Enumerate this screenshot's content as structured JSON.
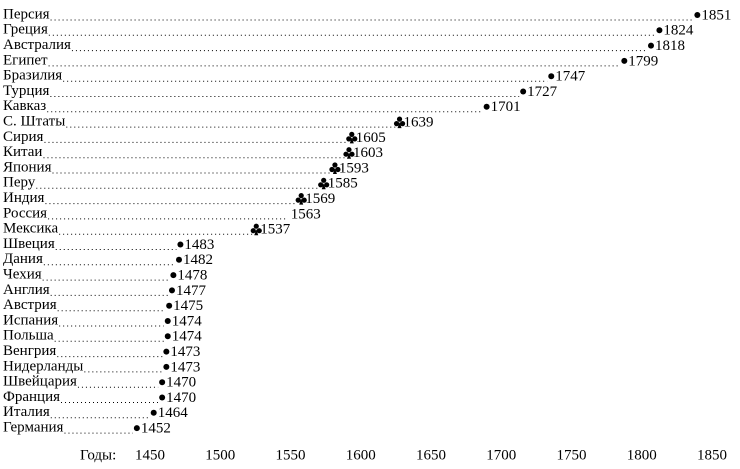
{
  "chart_data": {
    "type": "dot",
    "categories": [
      "Персия",
      "Греция",
      "Австралия",
      "Египет",
      "Бразилия",
      "Турция",
      "Кавказ",
      "С. Штаты",
      "Сирия",
      "Китаи",
      "Япония",
      "Перу",
      "Индия",
      "Россия",
      "Мексика",
      "Швеция",
      "Дания",
      "Чехия",
      "Англия",
      "Австрия",
      "Испания",
      "Польша",
      "Венгрия",
      "Нидерланды",
      "Швейцария",
      "Франция",
      "Италия",
      "Германия"
    ],
    "values": [
      1851,
      1824,
      1818,
      1799,
      1747,
      1727,
      1701,
      1639,
      1605,
      1603,
      1593,
      1585,
      1569,
      1563,
      1537,
      1483,
      1482,
      1478,
      1477,
      1475,
      1474,
      1474,
      1473,
      1473,
      1470,
      1470,
      1464,
      1452
    ],
    "markers": [
      "dot",
      "dot",
      "dot",
      "dot",
      "dot",
      "dot",
      "dot",
      "club",
      "club",
      "club",
      "club",
      "club",
      "club",
      "none",
      "club",
      "dot",
      "dot",
      "dot",
      "dot",
      "dot",
      "dot",
      "dot",
      "dot",
      "dot",
      "dot",
      "dot",
      "dot",
      "dot"
    ],
    "color": "#000000",
    "x_label": "Годы:",
    "xlim": [
      1440,
      1860
    ],
    "xticks": [
      1450,
      1500,
      1550,
      1600,
      1650,
      1700,
      1750,
      1800,
      1850
    ]
  }
}
